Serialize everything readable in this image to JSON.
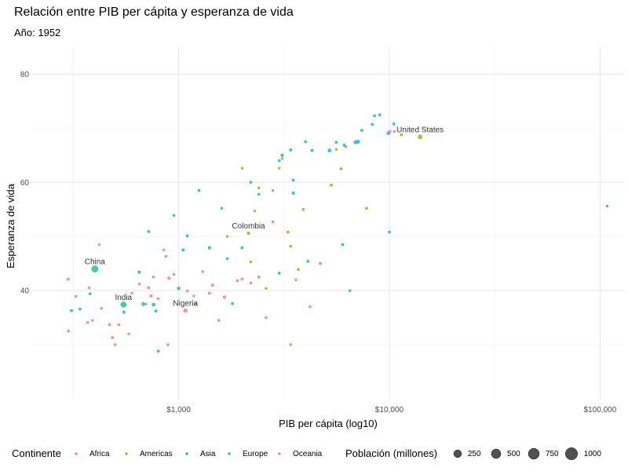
{
  "chart_data": {
    "type": "scatter",
    "title": "Relación entre PIB per cápita y esperanza de vida",
    "subtitle": "Año: 1952",
    "xlabel": "PIB per cápita (log10)",
    "ylabel": "Esperanza de vida",
    "x_scale": "log10",
    "xlim": [
      200,
      130000
    ],
    "ylim": [
      20,
      85
    ],
    "x_ticks": [
      {
        "value": 1000,
        "label": "$1,000"
      },
      {
        "value": 10000,
        "label": "$10,000"
      },
      {
        "value": 100000,
        "label": "$100,000"
      }
    ],
    "y_ticks": [
      {
        "value": 40,
        "label": "40"
      },
      {
        "value": 60,
        "label": "60"
      },
      {
        "value": 80,
        "label": "80"
      }
    ],
    "grid": true,
    "colors": {
      "Africa": "#F8766D",
      "Americas": "#A3A500",
      "Asia": "#00BF7D",
      "Europe": "#00B0F6",
      "Oceania": "#E76BF3"
    },
    "annotations": [
      {
        "label": "China",
        "x": 400,
        "y": 44
      },
      {
        "label": "India",
        "x": 547,
        "y": 37.4
      },
      {
        "label": "Nigeria",
        "x": 1077,
        "y": 36.3
      },
      {
        "label": "Colombia",
        "x": 2144,
        "y": 50.6
      },
      {
        "label": "United States",
        "x": 13990,
        "y": 68.4
      }
    ],
    "series": [
      {
        "name": "Africa",
        "points": [
          [
            299,
            42.1,
            5
          ],
          [
            300,
            32.5,
            3
          ],
          [
            325,
            38.9,
            3
          ],
          [
            370,
            34.1,
            4
          ],
          [
            375,
            40.5,
            3
          ],
          [
            390,
            34.5,
            2
          ],
          [
            420,
            48.5,
            2
          ],
          [
            430,
            36.7,
            3
          ],
          [
            470,
            33.7,
            3
          ],
          [
            485,
            31.3,
            5
          ],
          [
            500,
            30.0,
            3
          ],
          [
            520,
            33.7,
            3
          ],
          [
            580,
            32.0,
            2
          ],
          [
            600,
            39.5,
            2
          ],
          [
            650,
            41.2,
            4
          ],
          [
            700,
            37.5,
            2
          ],
          [
            720,
            40.5,
            5
          ],
          [
            740,
            39.0,
            8
          ],
          [
            760,
            42.5,
            3
          ],
          [
            800,
            38.5,
            3
          ],
          [
            850,
            47.5,
            3
          ],
          [
            870,
            46.3,
            3
          ],
          [
            890,
            30.0,
            3
          ],
          [
            900,
            42.3,
            8
          ],
          [
            950,
            43.0,
            4
          ],
          [
            1077,
            36.3,
            33
          ],
          [
            1100,
            39.9,
            3
          ],
          [
            1180,
            39.0,
            2
          ],
          [
            1200,
            37.5,
            3
          ],
          [
            1300,
            43.5,
            3
          ],
          [
            1400,
            39.5,
            5
          ],
          [
            1450,
            41.0,
            8
          ],
          [
            1550,
            34.5,
            4
          ],
          [
            1650,
            38.8,
            9
          ],
          [
            1900,
            41.8,
            4
          ],
          [
            2000,
            42.1,
            3
          ],
          [
            2200,
            41.4,
            3
          ],
          [
            2400,
            42.5,
            7
          ],
          [
            2600,
            35.0,
            3
          ],
          [
            2800,
            52.7,
            4
          ],
          [
            3400,
            30.0,
            3
          ],
          [
            3600,
            42.0,
            3
          ],
          [
            4200,
            37.0,
            3
          ],
          [
            4700,
            45.0,
            7
          ]
        ]
      },
      {
        "name": "Americas",
        "points": [
          [
            1700,
            50.0,
            2
          ],
          [
            2000,
            62.6,
            2
          ],
          [
            2144,
            50.6,
            12
          ],
          [
            2200,
            45.3,
            2
          ],
          [
            2300,
            54.7,
            2
          ],
          [
            2400,
            59.0,
            2
          ],
          [
            2600,
            40.4,
            2
          ],
          [
            2800,
            58.5,
            2
          ],
          [
            3000,
            62.6,
            2
          ],
          [
            3100,
            64.4,
            2
          ],
          [
            3300,
            50.8,
            5
          ],
          [
            3400,
            48.2,
            3
          ],
          [
            3700,
            43.9,
            4
          ],
          [
            3900,
            55.0,
            3
          ],
          [
            5300,
            59.5,
            5
          ],
          [
            5600,
            66.1,
            3
          ],
          [
            5900,
            62.5,
            5
          ],
          [
            6200,
            66.6,
            3
          ],
          [
            7800,
            55.2,
            5
          ],
          [
            11400,
            68.8,
            6
          ],
          [
            13990,
            68.4,
            55
          ]
        ]
      },
      {
        "name": "Asia",
        "points": [
          [
            310,
            36.3,
            6
          ],
          [
            340,
            36.6,
            3
          ],
          [
            380,
            39.4,
            3
          ],
          [
            400,
            44.0,
            200
          ],
          [
            547,
            37.4,
            130
          ],
          [
            550,
            36.0,
            6
          ],
          [
            650,
            43.4,
            8
          ],
          [
            680,
            37.5,
            22
          ],
          [
            720,
            50.9,
            3
          ],
          [
            760,
            37.4,
            20
          ],
          [
            780,
            36.2,
            6
          ],
          [
            800,
            28.8,
            4
          ],
          [
            950,
            53.9,
            2
          ],
          [
            1000,
            40.4,
            9
          ],
          [
            1050,
            47.5,
            6
          ],
          [
            1100,
            50.1,
            5
          ],
          [
            1250,
            58.5,
            4
          ],
          [
            1400,
            47.9,
            9
          ],
          [
            1700,
            45.9,
            3
          ],
          [
            1800,
            37.6,
            4
          ],
          [
            2000,
            47.9,
            4
          ],
          [
            3000,
            43.2,
            3
          ],
          [
            3100,
            65.0,
            9
          ],
          [
            3500,
            60.4,
            4
          ],
          [
            4100,
            45.4,
            4
          ],
          [
            6000,
            48.5,
            3
          ],
          [
            6500,
            40.0,
            2
          ],
          [
            10000,
            50.8,
            3
          ],
          [
            108000,
            55.6,
            2
          ]
        ]
      },
      {
        "name": "Europe",
        "points": [
          [
            1600,
            55.2,
            3
          ],
          [
            2200,
            60.0,
            3
          ],
          [
            2400,
            57.8,
            3
          ],
          [
            3000,
            64.0,
            3
          ],
          [
            3400,
            66.0,
            9
          ],
          [
            3500,
            58.0,
            9
          ],
          [
            4000,
            67.5,
            3
          ],
          [
            4300,
            65.9,
            7
          ],
          [
            5200,
            65.9,
            22
          ],
          [
            5600,
            67.4,
            4
          ],
          [
            6100,
            66.9,
            3
          ],
          [
            6900,
            67.4,
            22
          ],
          [
            7100,
            67.5,
            25
          ],
          [
            7400,
            69.6,
            4
          ],
          [
            8300,
            70.7,
            4
          ],
          [
            8500,
            72.3,
            4
          ],
          [
            9000,
            72.5,
            4
          ],
          [
            9900,
            69.1,
            21
          ],
          [
            10500,
            70.8,
            4
          ]
        ]
      },
      {
        "name": "Oceania",
        "points": [
          [
            10040,
            69.4,
            9
          ],
          [
            10560,
            69.4,
            2
          ]
        ]
      }
    ],
    "legend": {
      "color_title": "Continente",
      "size_title": "Población (millones)",
      "placement": "bottom",
      "size_entries": [
        {
          "label": "250",
          "value": 250
        },
        {
          "label": "500",
          "value": 500
        },
        {
          "label": "750",
          "value": 750
        },
        {
          "label": "1000",
          "value": 1000
        }
      ]
    }
  }
}
